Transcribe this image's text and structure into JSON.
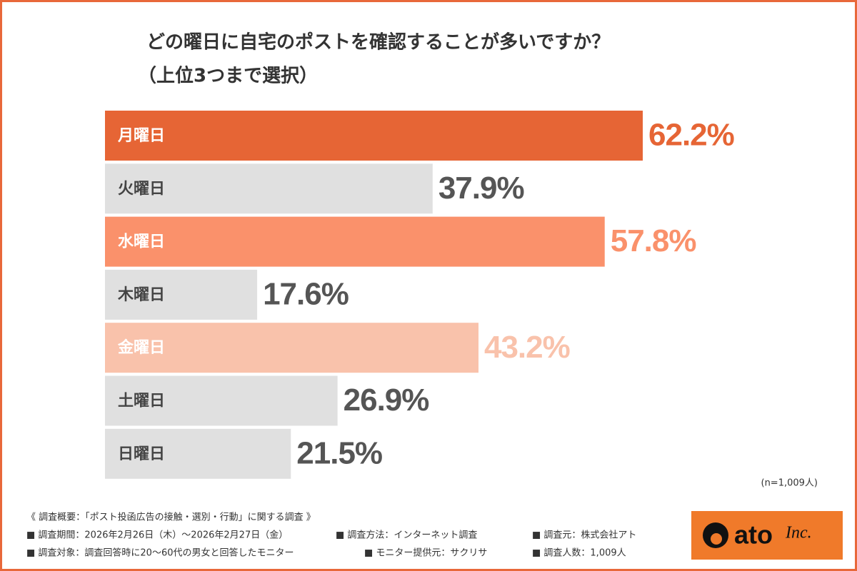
{
  "chart_data": {
    "type": "bar",
    "orientation": "horizontal",
    "title": "どの曜日に自宅のポストを確認することが多いですか？",
    "subtitle": "（上位3つまで選択）",
    "categories": [
      "月曜日",
      "火曜日",
      "水曜日",
      "木曜日",
      "金曜日",
      "土曜日",
      "日曜日"
    ],
    "values": [
      62.2,
      37.9,
      57.8,
      17.6,
      43.2,
      26.9,
      21.5
    ],
    "value_labels": [
      "62.2%",
      "37.9%",
      "57.8%",
      "17.6%",
      "43.2%",
      "26.9%",
      "21.5%"
    ],
    "colors": [
      "#e66535",
      "#e0e0e0",
      "#fa916b",
      "#e0e0e0",
      "#f9c2ab",
      "#e0e0e0",
      "#e0e0e0"
    ],
    "note": "(n=1,009人)"
  },
  "footer": {
    "heading": "《 調査概要：「ポスト投函広告の接触・選別・行動」に関する調査 》",
    "items": [
      "■ 調査期間：2026年2月26日（木）～2026年2月27日（金）",
      "■ 調査方法：インターネット調査",
      "■ 調査元：株式会社アト",
      "■ 調査対象：調査回答時に20～60代の男女と回答したモニター",
      "■ モニター提供元：サクリサ",
      "■ 調査人数：1,009人"
    ]
  },
  "logo": {
    "name": "ato",
    "suffix": "Inc."
  }
}
